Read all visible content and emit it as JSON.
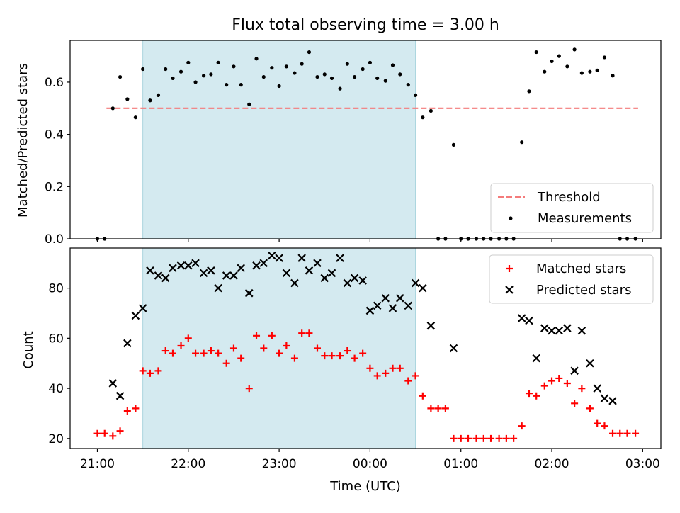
{
  "chart_data": [
    {
      "type": "scatter",
      "title": "Flux total observing time = 3.00 h",
      "ylabel": "Matched/Predicted stars",
      "ylim": [
        0,
        0.76
      ],
      "yticks": [
        "0.0",
        "0.2",
        "0.4",
        "0.6"
      ],
      "x_axis_unit": "hours since 21:00 UTC",
      "shaded_span": [
        0.5,
        3.5
      ],
      "shade_color": "#d4eaf0",
      "threshold": {
        "name": "Threshold",
        "value": 0.5,
        "x_range": [
          0.1,
          5.95
        ],
        "color": "#f47b7b"
      },
      "legend": {
        "placement": "lower right",
        "entries": [
          "Threshold",
          "Measurements"
        ]
      },
      "series": [
        {
          "name": "Measurements",
          "color": "#000000",
          "x": [
            0.0,
            0.08,
            0.17,
            0.25,
            0.33,
            0.42,
            0.5,
            0.58,
            0.67,
            0.75,
            0.83,
            0.92,
            1.0,
            1.08,
            1.17,
            1.25,
            1.33,
            1.42,
            1.5,
            1.58,
            1.67,
            1.75,
            1.83,
            1.92,
            2.0,
            2.08,
            2.17,
            2.25,
            2.33,
            2.42,
            2.5,
            2.58,
            2.67,
            2.75,
            2.83,
            2.92,
            3.0,
            3.08,
            3.17,
            3.25,
            3.33,
            3.42,
            3.5,
            3.58,
            3.67,
            3.75,
            3.83,
            3.92,
            4.0,
            4.08,
            4.17,
            4.25,
            4.33,
            4.42,
            4.5,
            4.58,
            4.67,
            4.75,
            4.83,
            4.92,
            5.0,
            5.08,
            5.17,
            5.25,
            5.33,
            5.42,
            5.5,
            5.58,
            5.67,
            5.75,
            5.83,
            5.92
          ],
          "y": [
            0.0,
            0.0,
            0.5,
            0.62,
            0.535,
            0.465,
            0.65,
            0.53,
            0.55,
            0.65,
            0.615,
            0.64,
            0.675,
            0.6,
            0.625,
            0.63,
            0.675,
            0.59,
            0.66,
            0.59,
            0.515,
            0.69,
            0.62,
            0.655,
            0.585,
            0.66,
            0.635,
            0.67,
            0.715,
            0.62,
            0.63,
            0.615,
            0.575,
            0.67,
            0.62,
            0.65,
            0.675,
            0.615,
            0.605,
            0.665,
            0.63,
            0.59,
            0.55,
            0.465,
            0.49,
            0.0,
            0.0,
            0.36,
            0.0,
            0.0,
            0.0,
            0.0,
            0.0,
            0.0,
            0.0,
            0.0,
            0.37,
            0.565,
            0.715,
            0.64,
            0.68,
            0.7,
            0.66,
            0.725,
            0.635,
            0.64,
            0.645,
            0.695,
            0.625,
            0.0,
            0.0,
            0.0
          ]
        }
      ]
    },
    {
      "type": "scatter",
      "ylabel": "Count",
      "xlabel": "Time (UTC)",
      "ylim": [
        16,
        96
      ],
      "yticks": [
        "20",
        "40",
        "60",
        "80"
      ],
      "xticks": [
        "21:00",
        "22:00",
        "23:00",
        "00:00",
        "01:00",
        "02:00",
        "03:00"
      ],
      "x_axis_unit": "hours since 21:00 UTC",
      "xlim": [
        -0.3,
        6.2
      ],
      "shaded_span": [
        0.5,
        3.5
      ],
      "shade_color": "#d4eaf0",
      "legend": {
        "placement": "upper right",
        "entries": [
          "Matched stars",
          "Predicted stars"
        ]
      },
      "series": [
        {
          "name": "Matched stars",
          "marker": "+",
          "color": "#ff0000",
          "x": [
            0.0,
            0.08,
            0.17,
            0.25,
            0.33,
            0.42,
            0.5,
            0.58,
            0.67,
            0.75,
            0.83,
            0.92,
            1.0,
            1.08,
            1.17,
            1.25,
            1.33,
            1.42,
            1.5,
            1.58,
            1.67,
            1.75,
            1.83,
            1.92,
            2.0,
            2.08,
            2.17,
            2.25,
            2.33,
            2.42,
            2.5,
            2.58,
            2.67,
            2.75,
            2.83,
            2.92,
            3.0,
            3.08,
            3.17,
            3.25,
            3.33,
            3.42,
            3.5,
            3.58,
            3.67,
            3.75,
            3.83,
            3.92,
            4.0,
            4.08,
            4.17,
            4.25,
            4.33,
            4.42,
            4.5,
            4.58,
            4.67,
            4.75,
            4.83,
            4.92,
            5.0,
            5.08,
            5.17,
            5.25,
            5.33,
            5.42,
            5.5,
            5.58,
            5.67,
            5.75,
            5.83,
            5.92
          ],
          "y": [
            22,
            22,
            21,
            23,
            31,
            32,
            47,
            46,
            47,
            55,
            54,
            57,
            60,
            54,
            54,
            55,
            54,
            50,
            56,
            52,
            40,
            61,
            56,
            61,
            54,
            57,
            52,
            62,
            62,
            56,
            53,
            53,
            53,
            55,
            52,
            54,
            48,
            45,
            46,
            48,
            48,
            43,
            45,
            37,
            32,
            32,
            32,
            20,
            20,
            20,
            20,
            20,
            20,
            20,
            20,
            20,
            25,
            38,
            37,
            41,
            43,
            44,
            42,
            34,
            40,
            32,
            26,
            25,
            22,
            22,
            22,
            22
          ]
        },
        {
          "name": "Predicted stars",
          "marker": "x",
          "color": "#000000",
          "x": [
            0.17,
            0.25,
            0.33,
            0.42,
            0.5,
            0.58,
            0.67,
            0.75,
            0.83,
            0.92,
            1.0,
            1.08,
            1.17,
            1.25,
            1.33,
            1.42,
            1.5,
            1.58,
            1.67,
            1.75,
            1.83,
            1.92,
            2.0,
            2.08,
            2.17,
            2.25,
            2.33,
            2.42,
            2.5,
            2.58,
            2.67,
            2.75,
            2.83,
            2.92,
            3.0,
            3.08,
            3.17,
            3.25,
            3.33,
            3.42,
            3.5,
            3.58,
            3.67,
            3.92,
            4.67,
            4.75,
            4.83,
            4.92,
            5.0,
            5.08,
            5.17,
            5.25,
            5.33,
            5.42,
            5.5,
            5.58,
            5.67
          ],
          "y": [
            42,
            37,
            58,
            69,
            72,
            87,
            85,
            84,
            88,
            89,
            89,
            90,
            86,
            87,
            80,
            85,
            85,
            88,
            78,
            89,
            90,
            93,
            92,
            86,
            82,
            92,
            87,
            90,
            84,
            86,
            92,
            82,
            84,
            83,
            71,
            73,
            76,
            72,
            76,
            73,
            82,
            80,
            65,
            56,
            68,
            67,
            52,
            64,
            63,
            63,
            64,
            47,
            63,
            50,
            40,
            36,
            35
          ]
        }
      ]
    }
  ]
}
